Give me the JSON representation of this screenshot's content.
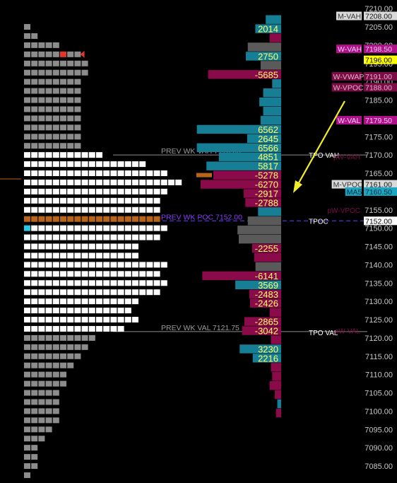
{
  "chart_data": {
    "type": "bar",
    "title": "",
    "price_axis": {
      "min": 7075,
      "max": 7210,
      "tick_step": 5,
      "decimals": 2,
      "current_price_label": "7152.00"
    },
    "tpo_profile": {
      "rows": [
        {
          "price": 7205.0,
          "count": 1,
          "tone": "gray"
        },
        {
          "price": 7202.5,
          "count": 2,
          "tone": "gray"
        },
        {
          "price": 7200.0,
          "count": 5,
          "tone": "gray"
        },
        {
          "price": 7197.5,
          "count": 8,
          "tone": "gray",
          "red_marker": true
        },
        {
          "price": 7195.0,
          "count": 9,
          "tone": "gray"
        },
        {
          "price": 7192.5,
          "count": 9,
          "tone": "gray"
        },
        {
          "price": 7190.0,
          "count": 8,
          "tone": "gray"
        },
        {
          "price": 7187.5,
          "count": 8,
          "tone": "gray"
        },
        {
          "price": 7185.0,
          "count": 8,
          "tone": "gray"
        },
        {
          "price": 7182.5,
          "count": 8,
          "tone": "gray"
        },
        {
          "price": 7180.0,
          "count": 8,
          "tone": "gray"
        },
        {
          "price": 7177.5,
          "count": 8,
          "tone": "gray"
        },
        {
          "price": 7175.0,
          "count": 8,
          "tone": "gray"
        },
        {
          "price": 7172.5,
          "count": 8,
          "tone": "gray"
        },
        {
          "price": 7170.0,
          "count": 11,
          "tone": "white"
        },
        {
          "price": 7167.5,
          "count": 17,
          "tone": "white"
        },
        {
          "price": 7165.0,
          "count": 20,
          "tone": "white"
        },
        {
          "price": 7162.5,
          "count": 22,
          "tone": "white"
        },
        {
          "price": 7160.0,
          "count": 20,
          "tone": "white"
        },
        {
          "price": 7157.5,
          "count": 19,
          "tone": "white"
        },
        {
          "price": 7155.0,
          "count": 19,
          "tone": "white"
        },
        {
          "price": 7152.5,
          "count": 19,
          "tone": "orange"
        },
        {
          "price": 7150.0,
          "count": 20,
          "tone": "white",
          "cyan_marker": true
        },
        {
          "price": 7147.5,
          "count": 19,
          "tone": "white"
        },
        {
          "price": 7145.0,
          "count": 16,
          "tone": "white"
        },
        {
          "price": 7142.5,
          "count": 16,
          "tone": "white"
        },
        {
          "price": 7140.0,
          "count": 20,
          "tone": "white"
        },
        {
          "price": 7137.5,
          "count": 19,
          "tone": "white"
        },
        {
          "price": 7135.0,
          "count": 20,
          "tone": "white"
        },
        {
          "price": 7132.5,
          "count": 19,
          "tone": "white"
        },
        {
          "price": 7130.0,
          "count": 16,
          "tone": "white"
        },
        {
          "price": 7127.5,
          "count": 15,
          "tone": "white"
        },
        {
          "price": 7125.0,
          "count": 16,
          "tone": "white"
        },
        {
          "price": 7122.5,
          "count": 14,
          "tone": "white"
        },
        {
          "price": 7120.0,
          "count": 10,
          "tone": "gray"
        },
        {
          "price": 7117.5,
          "count": 9,
          "tone": "gray"
        },
        {
          "price": 7115.0,
          "count": 8,
          "tone": "gray"
        },
        {
          "price": 7112.5,
          "count": 7,
          "tone": "gray"
        },
        {
          "price": 7110.0,
          "count": 6,
          "tone": "gray"
        },
        {
          "price": 7107.5,
          "count": 6,
          "tone": "gray"
        },
        {
          "price": 7105.0,
          "count": 5,
          "tone": "gray"
        },
        {
          "price": 7102.5,
          "count": 5,
          "tone": "gray"
        },
        {
          "price": 7100.0,
          "count": 5,
          "tone": "gray"
        },
        {
          "price": 7097.5,
          "count": 5,
          "tone": "gray"
        },
        {
          "price": 7095.0,
          "count": 4,
          "tone": "gray"
        },
        {
          "price": 7092.5,
          "count": 3,
          "tone": "gray"
        },
        {
          "price": 7090.0,
          "count": 2,
          "tone": "gray"
        },
        {
          "price": 7087.5,
          "count": 2,
          "tone": "gray"
        },
        {
          "price": 7085.0,
          "count": 2,
          "tone": "gray"
        },
        {
          "price": 7082.5,
          "count": 1,
          "tone": "gray"
        }
      ]
    },
    "delta_profile": {
      "bars": [
        {
          "price": 7207.0,
          "value": 1200,
          "color": "teal"
        },
        {
          "price": 7204.5,
          "value": 2014,
          "label": "2014",
          "color": "teal"
        },
        {
          "price": 7202.0,
          "value": -900,
          "color": "crimson"
        },
        {
          "price": 7199.5,
          "value": -2600,
          "color": "gray"
        },
        {
          "price": 7197.0,
          "value": 2750,
          "label": "2750",
          "color": "teal"
        },
        {
          "price": 7194.5,
          "value": -1600,
          "color": "gray"
        },
        {
          "price": 7192.0,
          "value": -5685,
          "label": "-5685",
          "color": "crimson"
        },
        {
          "price": 7189.5,
          "value": 700,
          "color": "teal"
        },
        {
          "price": 7187.0,
          "value": 1400,
          "color": "teal"
        },
        {
          "price": 7184.5,
          "value": 1700,
          "color": "teal"
        },
        {
          "price": 7182.0,
          "value": 1400,
          "color": "teal"
        },
        {
          "price": 7179.5,
          "value": 1600,
          "color": "teal"
        },
        {
          "price": 7177.0,
          "value": 6562,
          "label": "6562",
          "color": "teal"
        },
        {
          "price": 7174.5,
          "value": 2645,
          "label": "2645",
          "color": "teal"
        },
        {
          "price": 7172.0,
          "value": 6566,
          "label": "6566",
          "color": "teal"
        },
        {
          "price": 7169.5,
          "value": 4851,
          "label": "4851",
          "color": "teal"
        },
        {
          "price": 7167.0,
          "value": 5817,
          "label": "5817",
          "color": "teal"
        },
        {
          "price": 7164.5,
          "value": -5278,
          "label": "-5278",
          "color": "crimson"
        },
        {
          "price": 7162.0,
          "value": -6270,
          "label": "-6270",
          "color": "crimson"
        },
        {
          "price": 7159.5,
          "value": -2917,
          "label": "-2917",
          "color": "crimson"
        },
        {
          "price": 7157.0,
          "value": -2788,
          "label": "-2788",
          "color": "crimson"
        },
        {
          "price": 7154.5,
          "value": 1800,
          "color": "teal"
        },
        {
          "price": 7152.0,
          "value": -2600,
          "color": "gray"
        },
        {
          "price": 7149.5,
          "value": -3400,
          "color": "gray"
        },
        {
          "price": 7147.0,
          "value": -3300,
          "color": "gray"
        },
        {
          "price": 7144.5,
          "value": -2255,
          "label": "-2255",
          "color": "crimson"
        },
        {
          "price": 7142.0,
          "value": -2100,
          "color": "crimson"
        },
        {
          "price": 7139.5,
          "value": -2000,
          "color": "gray"
        },
        {
          "price": 7137.0,
          "value": -6141,
          "label": "-6141",
          "color": "crimson"
        },
        {
          "price": 7134.5,
          "value": 3569,
          "label": "3569",
          "color": "teal"
        },
        {
          "price": 7132.0,
          "value": -2483,
          "label": "-2483",
          "color": "crimson"
        },
        {
          "price": 7129.5,
          "value": -2426,
          "label": "-2426",
          "color": "crimson"
        },
        {
          "price": 7127.0,
          "value": -900,
          "color": "crimson"
        },
        {
          "price": 7124.5,
          "value": -2865,
          "label": "-2865",
          "color": "crimson"
        },
        {
          "price": 7122.0,
          "value": -3042,
          "label": "-3042",
          "color": "crimson"
        },
        {
          "price": 7119.5,
          "value": -800,
          "color": "crimson"
        },
        {
          "price": 7117.0,
          "value": 3230,
          "label": "3230",
          "color": "teal"
        },
        {
          "price": 7114.5,
          "value": 2216,
          "label": "2216",
          "color": "teal"
        },
        {
          "price": 7112.0,
          "value": -800,
          "color": "crimson"
        },
        {
          "price": 7109.5,
          "value": -700,
          "color": "crimson"
        },
        {
          "price": 7107.0,
          "value": -900,
          "color": "crimson"
        },
        {
          "price": 7104.5,
          "value": -500,
          "color": "crimson"
        },
        {
          "price": 7102.0,
          "value": 300,
          "color": "teal"
        },
        {
          "price": 7099.5,
          "value": -400,
          "color": "crimson"
        }
      ]
    },
    "level_lines": [
      {
        "price": 7170.0,
        "label": "PREV WK VAH  7170.00",
        "label_color": "#9a9a9a",
        "line_color": "#8c8c8c",
        "style": "solid"
      },
      {
        "price": 7152.0,
        "label": "PREV WK POC  7152.00",
        "label_color": "#8a3cff",
        "line_color": "#6a3cff",
        "style": "dashed"
      },
      {
        "price": 7121.75,
        "label": "PREV WK VAL  7121.75",
        "label_color": "#9a9a9a",
        "line_color": "#8c8c8c",
        "style": "solid"
      }
    ],
    "tpo_labels": [
      {
        "price": 7170.0,
        "text": "TPO VAH"
      },
      {
        "price": 7152.0,
        "text": "TPOC"
      },
      {
        "price": 7121.5,
        "text": "TPO VAL"
      }
    ],
    "faded_labels": [
      {
        "price": 7169.5,
        "text": "pW-VAH"
      },
      {
        "price": 7155.0,
        "text": "pW-VPOC"
      },
      {
        "price": 7122.0,
        "text": "pW-VAL"
      }
    ],
    "axis_tags": [
      {
        "price": 7208.0,
        "text": "M-VAH",
        "bg": "#d9d9d9",
        "fg": "#333333",
        "side": "left"
      },
      {
        "price": 7208.0,
        "text": "7208.00",
        "bg": "#d9d9d9",
        "fg": "#111111",
        "side": "right"
      },
      {
        "price": 7199.0,
        "text": "W-VAH",
        "bg": "#b0108c",
        "fg": "#f0d0ea",
        "side": "left"
      },
      {
        "price": 7199.0,
        "text": "7198.50",
        "bg": "#b0108c",
        "fg": "#f0d0ea",
        "side": "right"
      },
      {
        "price": 7196.0,
        "text": "7196.00",
        "bg": "#ffff00",
        "fg": "#000000",
        "side": "right"
      },
      {
        "price": 7191.5,
        "text": "W-VWAP",
        "bg": "#7a0d46",
        "fg": "#e0b0c8",
        "side": "left"
      },
      {
        "price": 7191.5,
        "text": "7191.00",
        "bg": "#7a0d46",
        "fg": "#e0b0c8",
        "side": "right"
      },
      {
        "price": 7188.5,
        "text": "W-VPOC",
        "bg": "#7a0d46",
        "fg": "#e0b0c8",
        "side": "left"
      },
      {
        "price": 7188.5,
        "text": "7188.00",
        "bg": "#7a0d46",
        "fg": "#e0b0c8",
        "side": "right"
      },
      {
        "price": 7179.5,
        "text": "W-VAL",
        "bg": "#b0108c",
        "fg": "#f0d0ea",
        "side": "left"
      },
      {
        "price": 7179.5,
        "text": "7179.50",
        "bg": "#b0108c",
        "fg": "#f0d0ea",
        "side": "right"
      },
      {
        "price": 7162.0,
        "text": "M-VPOC",
        "bg": "#d9d9d9",
        "fg": "#333333",
        "side": "left"
      },
      {
        "price": 7162.0,
        "text": "7161.00",
        "bg": "#d9d9d9",
        "fg": "#111111",
        "side": "right"
      },
      {
        "price": 7160.0,
        "text": "MA5",
        "bg": "#1ba7c4",
        "fg": "#00283a",
        "side": "left"
      },
      {
        "price": 7160.0,
        "text": "7160.50",
        "bg": "#1ba7c4",
        "fg": "#00283a",
        "side": "right"
      },
      {
        "price": 7152.0,
        "text": "7152.00",
        "bg": "#ffffff",
        "fg": "#000000",
        "side": "right"
      }
    ],
    "colors": {
      "background": "#000000",
      "tpo_white": "#ffffff",
      "tpo_gray": "#8c8c8c",
      "tpo_orange": "#b8651b",
      "marker_cyan": "#29c7e6",
      "marker_red": "#e5342a",
      "bar_teal": "#167f95",
      "bar_crimson": "#8a0a4a",
      "bar_gray": "#5a5a5a",
      "value_label": "#ffff66",
      "axis_text": "#c8c8c8",
      "arrow": "#f2ef2a"
    }
  }
}
